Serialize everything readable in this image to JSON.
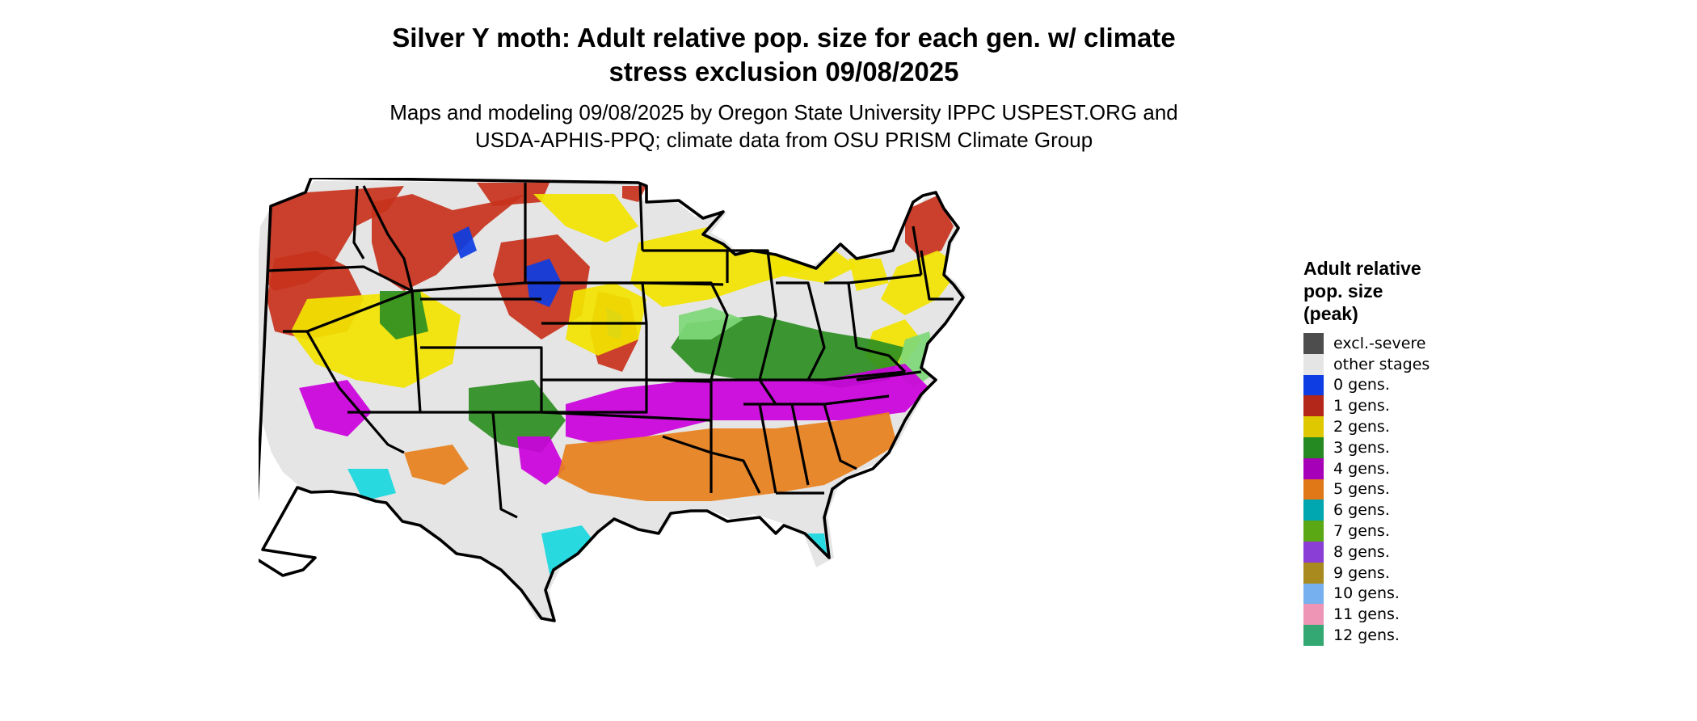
{
  "title_line1": "Silver Y moth: Adult relative pop. size for each gen. w/ climate",
  "title_line2": "stress exclusion 09/08/2025",
  "subtitle_line1": "Maps and modeling 09/08/2025 by Oregon State University IPPC USPEST.ORG and",
  "subtitle_line2": "USDA-APHIS-PPQ; climate data from OSU PRISM Climate Group",
  "legend": {
    "title_line1": "Adult relative",
    "title_line2": "pop. size",
    "title_line3": "(peak)",
    "items": [
      {
        "label": "excl.-severe",
        "color": "#4d4d4d"
      },
      {
        "label": "other stages",
        "color": "#e5e5e5"
      },
      {
        "label": "0 gens.",
        "color": "#0d3de3"
      },
      {
        "label": "1 gens.",
        "color": "#b3261a"
      },
      {
        "label": "2 gens.",
        "color": "#e0c800"
      },
      {
        "label": "3 gens.",
        "color": "#258a22"
      },
      {
        "label": "4 gens.",
        "color": "#a600b8"
      },
      {
        "label": "5 gens.",
        "color": "#e07818"
      },
      {
        "label": "6 gens.",
        "color": "#00a6b0"
      },
      {
        "label": "7 gens.",
        "color": "#5aa814"
      },
      {
        "label": "8 gens.",
        "color": "#8a3ed6"
      },
      {
        "label": "9 gens.",
        "color": "#a88a1e"
      },
      {
        "label": "10 gens.",
        "color": "#76b0ee"
      },
      {
        "label": "11 gens.",
        "color": "#ee94b4"
      },
      {
        "label": "12 gens.",
        "color": "#33a872"
      }
    ]
  },
  "map_colors": {
    "background": "#e5e5e5",
    "gen0": "#0d3de3",
    "gen1": "#c8321c",
    "gen2": "#f2e400",
    "gen3": "#2c8f22",
    "gen3_light": "#7fd878",
    "gen4": "#cc00dd",
    "gen5": "#e8801c",
    "gen6": "#18d8e0",
    "border": "#000000"
  }
}
